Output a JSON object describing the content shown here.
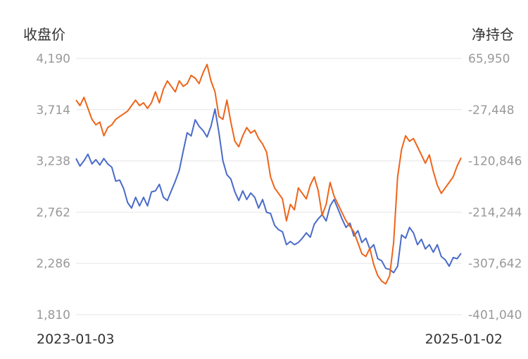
{
  "chart_data": {
    "type": "line",
    "dual_axis": true,
    "left_axis": {
      "title": "收盘价",
      "ticks": [
        "4,190",
        "3,714",
        "3,238",
        "2,762",
        "2,286",
        "1,810"
      ],
      "range": [
        1810,
        4190
      ]
    },
    "right_axis": {
      "title": "净持仓",
      "ticks": [
        "65,950",
        "-27,448",
        "-120,846",
        "-214,244",
        "-307,642",
        "-401,040"
      ],
      "range": [
        -401040,
        65950
      ]
    },
    "x_axis": {
      "start_label": "2023-01-03",
      "end_label": "2025-01-02"
    },
    "grid": true,
    "series": [
      {
        "axis": "left",
        "color": "#4a6bc8",
        "points": [
          [
            0,
            3260
          ],
          [
            2,
            3190
          ],
          [
            4,
            3240
          ],
          [
            6,
            3300
          ],
          [
            8,
            3210
          ],
          [
            10,
            3250
          ],
          [
            12,
            3200
          ],
          [
            14,
            3260
          ],
          [
            16,
            3210
          ],
          [
            18,
            3180
          ],
          [
            20,
            3050
          ],
          [
            22,
            3060
          ],
          [
            24,
            2980
          ],
          [
            26,
            2850
          ],
          [
            28,
            2800
          ],
          [
            30,
            2900
          ],
          [
            32,
            2820
          ],
          [
            34,
            2900
          ],
          [
            36,
            2820
          ],
          [
            38,
            2950
          ],
          [
            40,
            2960
          ],
          [
            42,
            3020
          ],
          [
            44,
            2900
          ],
          [
            46,
            2870
          ],
          [
            48,
            2960
          ],
          [
            50,
            3050
          ],
          [
            52,
            3150
          ],
          [
            54,
            3330
          ],
          [
            56,
            3500
          ],
          [
            58,
            3470
          ],
          [
            60,
            3620
          ],
          [
            62,
            3560
          ],
          [
            64,
            3520
          ],
          [
            66,
            3460
          ],
          [
            68,
            3560
          ],
          [
            70,
            3720
          ],
          [
            72,
            3500
          ],
          [
            74,
            3240
          ],
          [
            76,
            3110
          ],
          [
            78,
            3070
          ],
          [
            80,
            2950
          ],
          [
            82,
            2870
          ],
          [
            84,
            2960
          ],
          [
            86,
            2880
          ],
          [
            88,
            2940
          ],
          [
            90,
            2900
          ],
          [
            92,
            2800
          ],
          [
            94,
            2880
          ],
          [
            96,
            2760
          ],
          [
            98,
            2750
          ],
          [
            100,
            2640
          ],
          [
            102,
            2600
          ],
          [
            104,
            2580
          ],
          [
            106,
            2460
          ],
          [
            108,
            2490
          ],
          [
            110,
            2460
          ],
          [
            112,
            2480
          ],
          [
            114,
            2520
          ],
          [
            116,
            2570
          ],
          [
            118,
            2530
          ],
          [
            120,
            2650
          ],
          [
            122,
            2700
          ],
          [
            124,
            2740
          ],
          [
            126,
            2680
          ],
          [
            128,
            2820
          ],
          [
            130,
            2880
          ],
          [
            132,
            2790
          ],
          [
            134,
            2700
          ],
          [
            136,
            2620
          ],
          [
            138,
            2660
          ],
          [
            140,
            2540
          ],
          [
            142,
            2590
          ],
          [
            144,
            2480
          ],
          [
            146,
            2520
          ],
          [
            148,
            2420
          ],
          [
            150,
            2460
          ],
          [
            152,
            2330
          ],
          [
            154,
            2310
          ],
          [
            156,
            2240
          ],
          [
            158,
            2230
          ],
          [
            160,
            2200
          ],
          [
            162,
            2260
          ],
          [
            164,
            2550
          ],
          [
            166,
            2520
          ],
          [
            168,
            2620
          ],
          [
            170,
            2570
          ],
          [
            172,
            2460
          ],
          [
            174,
            2510
          ],
          [
            176,
            2420
          ],
          [
            178,
            2460
          ],
          [
            180,
            2390
          ],
          [
            182,
            2460
          ],
          [
            184,
            2350
          ],
          [
            186,
            2320
          ],
          [
            188,
            2260
          ],
          [
            190,
            2340
          ],
          [
            192,
            2330
          ],
          [
            194,
            2380
          ]
        ]
      },
      {
        "axis": "right",
        "color": "#ee6418",
        "points": [
          [
            0,
            -10000
          ],
          [
            2,
            -20000
          ],
          [
            4,
            -5000
          ],
          [
            6,
            -25000
          ],
          [
            8,
            -45000
          ],
          [
            10,
            -55000
          ],
          [
            12,
            -50000
          ],
          [
            14,
            -75000
          ],
          [
            16,
            -60000
          ],
          [
            18,
            -55000
          ],
          [
            20,
            -45000
          ],
          [
            22,
            -40000
          ],
          [
            24,
            -35000
          ],
          [
            26,
            -30000
          ],
          [
            28,
            -20000
          ],
          [
            30,
            -10000
          ],
          [
            32,
            -20000
          ],
          [
            34,
            -15000
          ],
          [
            36,
            -25000
          ],
          [
            38,
            -15000
          ],
          [
            40,
            5000
          ],
          [
            42,
            -15000
          ],
          [
            44,
            10000
          ],
          [
            46,
            25000
          ],
          [
            48,
            15000
          ],
          [
            50,
            5000
          ],
          [
            52,
            25000
          ],
          [
            54,
            15000
          ],
          [
            56,
            20000
          ],
          [
            58,
            35000
          ],
          [
            60,
            30000
          ],
          [
            62,
            20000
          ],
          [
            64,
            40000
          ],
          [
            66,
            55000
          ],
          [
            68,
            25000
          ],
          [
            70,
            5000
          ],
          [
            72,
            -40000
          ],
          [
            74,
            -45000
          ],
          [
            76,
            -10000
          ],
          [
            78,
            -50000
          ],
          [
            80,
            -85000
          ],
          [
            82,
            -95000
          ],
          [
            84,
            -75000
          ],
          [
            86,
            -60000
          ],
          [
            88,
            -70000
          ],
          [
            90,
            -65000
          ],
          [
            92,
            -80000
          ],
          [
            94,
            -90000
          ],
          [
            96,
            -105000
          ],
          [
            98,
            -150000
          ],
          [
            100,
            -170000
          ],
          [
            102,
            -180000
          ],
          [
            104,
            -190000
          ],
          [
            106,
            -230000
          ],
          [
            108,
            -200000
          ],
          [
            110,
            -210000
          ],
          [
            112,
            -170000
          ],
          [
            114,
            -180000
          ],
          [
            116,
            -190000
          ],
          [
            118,
            -165000
          ],
          [
            120,
            -150000
          ],
          [
            122,
            -175000
          ],
          [
            124,
            -220000
          ],
          [
            126,
            -200000
          ],
          [
            128,
            -160000
          ],
          [
            130,
            -185000
          ],
          [
            132,
            -200000
          ],
          [
            134,
            -215000
          ],
          [
            136,
            -230000
          ],
          [
            138,
            -240000
          ],
          [
            140,
            -250000
          ],
          [
            142,
            -270000
          ],
          [
            144,
            -290000
          ],
          [
            146,
            -295000
          ],
          [
            148,
            -280000
          ],
          [
            150,
            -310000
          ],
          [
            152,
            -330000
          ],
          [
            154,
            -340000
          ],
          [
            156,
            -345000
          ],
          [
            158,
            -330000
          ],
          [
            160,
            -270000
          ],
          [
            162,
            -150000
          ],
          [
            164,
            -100000
          ],
          [
            166,
            -75000
          ],
          [
            168,
            -85000
          ],
          [
            170,
            -80000
          ],
          [
            172,
            -95000
          ],
          [
            174,
            -110000
          ],
          [
            176,
            -125000
          ],
          [
            178,
            -110000
          ],
          [
            180,
            -140000
          ],
          [
            182,
            -165000
          ],
          [
            184,
            -180000
          ],
          [
            186,
            -170000
          ],
          [
            188,
            -160000
          ],
          [
            190,
            -150000
          ],
          [
            192,
            -130000
          ],
          [
            194,
            -115000
          ]
        ]
      }
    ]
  }
}
